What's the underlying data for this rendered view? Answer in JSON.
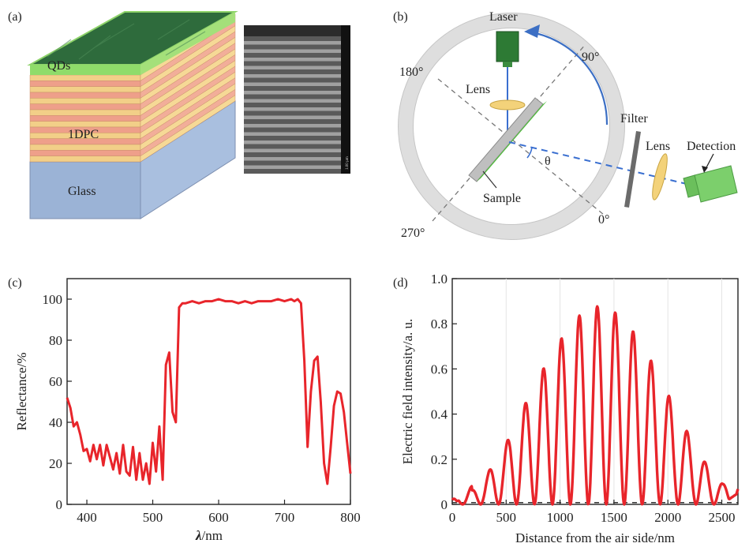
{
  "panels": {
    "a": {
      "label": "(a)",
      "layers": {
        "top": "QDs",
        "middle": "1DPC",
        "bottom": "Glass"
      },
      "sem_scale_text": "1.00 µm"
    },
    "b": {
      "label": "(b)",
      "labels": {
        "laser": "Laser",
        "lens_inner": "Lens",
        "filter": "Filter",
        "lens_outer": "Lens",
        "detection": "Detection",
        "sample": "Sample",
        "theta": "θ",
        "deg_90": "90°",
        "deg_180": "180°",
        "deg_270": "270°",
        "deg_0": "0°"
      }
    },
    "c": {
      "label": "(c)"
    },
    "d": {
      "label": "(d)"
    }
  },
  "chart_data": [
    {
      "panel": "c",
      "type": "line",
      "xlabel_symbol": "λ",
      "xlabel_unit": "/nm",
      "ylabel": "Reflectance/%",
      "xlim": [
        370,
        800
      ],
      "ylim": [
        0,
        110
      ],
      "xticks": [
        400,
        500,
        600,
        700,
        800
      ],
      "yticks": [
        0,
        20,
        40,
        60,
        80,
        100
      ],
      "color": "#e8252b",
      "series": [
        {
          "x": [
            370,
            375,
            380,
            385,
            390,
            395,
            400,
            405,
            410,
            415,
            420,
            425,
            430,
            435,
            440,
            445,
            450,
            455,
            460,
            465,
            470,
            475,
            480,
            485,
            490,
            495,
            500,
            505,
            510,
            515,
            520,
            525,
            530,
            535,
            540,
            545,
            550,
            560,
            570,
            580,
            590,
            600,
            610,
            620,
            630,
            640,
            650,
            660,
            670,
            680,
            690,
            700,
            710,
            715,
            720,
            725,
            730,
            735,
            740,
            745,
            750,
            755,
            760,
            765,
            770,
            775,
            780,
            785,
            790,
            795,
            800
          ],
          "y": [
            52,
            47,
            38,
            40,
            34,
            26,
            27,
            21,
            29,
            22,
            29,
            19,
            29,
            23,
            17,
            25,
            15,
            29,
            16,
            14,
            28,
            12,
            25,
            12,
            20,
            10,
            30,
            16,
            38,
            12,
            68,
            74,
            45,
            40,
            96,
            98,
            98,
            99,
            98,
            99,
            99,
            100,
            99,
            99,
            98,
            99,
            98,
            99,
            99,
            99,
            100,
            99,
            100,
            99,
            100,
            98,
            70,
            28,
            55,
            70,
            72,
            50,
            20,
            10,
            28,
            48,
            55,
            54,
            45,
            30,
            15
          ]
        }
      ]
    },
    {
      "panel": "d",
      "type": "line",
      "xlabel": "Distance from the air side/nm",
      "ylabel": "Electric field intensity/a. u.",
      "xlim": [
        0,
        2650
      ],
      "ylim": [
        0,
        1.0
      ],
      "xticks": [
        0,
        500,
        1000,
        1500,
        2000,
        2500
      ],
      "yticks": [
        0,
        0.2,
        0.4,
        0.6,
        0.8,
        1.0
      ],
      "ytick_labels": [
        "0",
        "0.2",
        "0.4",
        "0.6",
        "0.8",
        "1.0"
      ],
      "color": "#e8252b",
      "peaks": {
        "x": [
          180,
          330,
          490,
          650,
          820,
          990,
          1160,
          1320,
          1490,
          1660,
          1830,
          2000,
          2170,
          2340,
          2510
        ],
        "y": [
          0.06,
          0.14,
          0.26,
          0.42,
          0.58,
          0.72,
          0.83,
          0.88,
          0.86,
          0.78,
          0.65,
          0.49,
          0.33,
          0.19,
          0.09
        ]
      }
    }
  ]
}
